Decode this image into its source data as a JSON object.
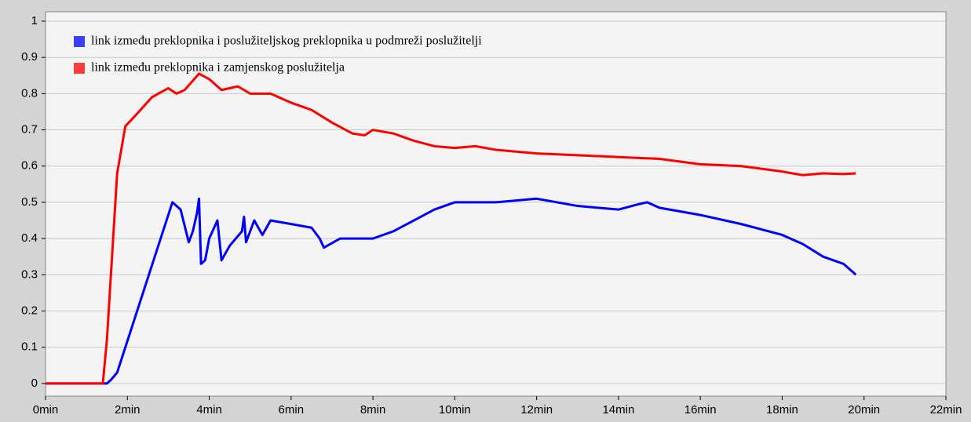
{
  "chart_data": {
    "type": "line",
    "xlim": [
      0,
      22
    ],
    "xticks": [
      {
        "value": 0,
        "label": "0min"
      },
      {
        "value": 2,
        "label": "2min"
      },
      {
        "value": 4,
        "label": "4min"
      },
      {
        "value": 6,
        "label": "6min"
      },
      {
        "value": 8,
        "label": "8min"
      },
      {
        "value": 10,
        "label": "10min"
      },
      {
        "value": 12,
        "label": "12min"
      },
      {
        "value": 14,
        "label": "14min"
      },
      {
        "value": 16,
        "label": "16min"
      },
      {
        "value": 18,
        "label": "18min"
      },
      {
        "value": 20,
        "label": "20min"
      },
      {
        "value": 22,
        "label": "22min"
      }
    ],
    "ylim": [
      -0.035,
      1.026
    ],
    "yticks": [
      0,
      0.1,
      0.2,
      0.3,
      0.4,
      0.5,
      0.6,
      0.7,
      0.8,
      0.9,
      1
    ],
    "grid": true,
    "legend": "upper-left",
    "series": [
      {
        "name": "link između preklopnika i poslužiteljskog preklopnika u podmreži poslužitelji",
        "color": "#0000ff",
        "x": [
          0,
          1.5,
          1.6,
          1.75,
          3.1,
          3.3,
          3.5,
          3.6,
          3.7,
          3.75,
          3.8,
          3.9,
          4.0,
          4.2,
          4.3,
          4.5,
          4.8,
          4.85,
          4.9,
          5.1,
          5.3,
          5.5,
          6.0,
          6.5,
          6.7,
          6.8,
          7.2,
          8.0,
          8.5,
          9.0,
          9.5,
          10.0,
          11.0,
          12.0,
          13.0,
          14.0,
          14.5,
          14.7,
          15.0,
          16.0,
          17.0,
          18.0,
          18.5,
          19.0,
          19.5,
          19.8
        ],
        "values": [
          0,
          0,
          0.01,
          0.03,
          0.5,
          0.48,
          0.39,
          0.42,
          0.47,
          0.51,
          0.33,
          0.34,
          0.4,
          0.45,
          0.34,
          0.38,
          0.42,
          0.46,
          0.39,
          0.45,
          0.41,
          0.45,
          0.44,
          0.43,
          0.4,
          0.375,
          0.4,
          0.4,
          0.42,
          0.45,
          0.48,
          0.5,
          0.5,
          0.51,
          0.49,
          0.48,
          0.495,
          0.5,
          0.485,
          0.465,
          0.44,
          0.41,
          0.385,
          0.35,
          0.33,
          0.3
        ]
      },
      {
        "name": "link između preklopnika i zamjenskog poslužitelja",
        "color": "#ff0000",
        "x": [
          0,
          1.4,
          1.5,
          1.75,
          1.95,
          2.2,
          2.6,
          3.0,
          3.2,
          3.4,
          3.75,
          4.0,
          4.3,
          4.7,
          5.0,
          5.5,
          6.0,
          6.5,
          7.0,
          7.5,
          7.8,
          8.0,
          8.5,
          9.0,
          9.5,
          10.0,
          10.5,
          11.0,
          12.0,
          13.0,
          14.0,
          15.0,
          16.0,
          17.0,
          18.0,
          18.5,
          19.0,
          19.5,
          19.8
        ],
        "values": [
          0,
          0,
          0.12,
          0.58,
          0.71,
          0.74,
          0.79,
          0.815,
          0.8,
          0.81,
          0.855,
          0.84,
          0.81,
          0.82,
          0.8,
          0.8,
          0.775,
          0.755,
          0.72,
          0.69,
          0.685,
          0.7,
          0.69,
          0.67,
          0.655,
          0.65,
          0.655,
          0.645,
          0.635,
          0.63,
          0.625,
          0.62,
          0.605,
          0.6,
          0.585,
          0.575,
          0.58,
          0.578,
          0.58
        ]
      }
    ]
  }
}
